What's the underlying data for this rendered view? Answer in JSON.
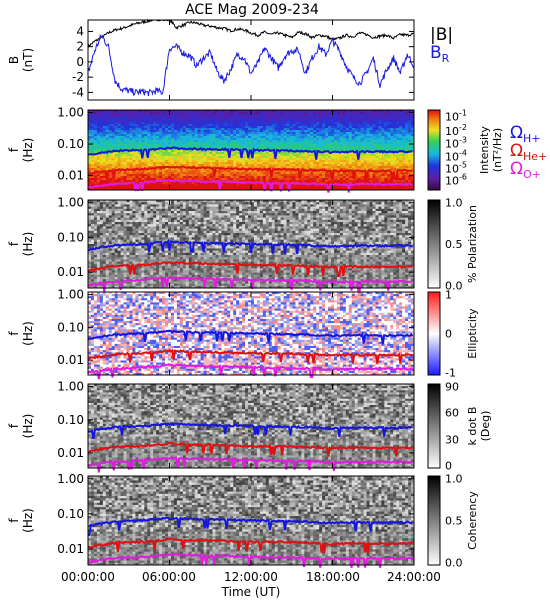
{
  "title": "ACE Mag 2009-234",
  "xaxis": {
    "label": "Time (UT)",
    "ticks": [
      "00:00:00",
      "06:00:00",
      "12:00:00",
      "18:00:00",
      "24:00:00"
    ]
  },
  "colors": {
    "B": "#000000",
    "BR": "#1a1ae6",
    "H": "#1515e0",
    "He": "#e01010",
    "O": "#e01ce0"
  },
  "panels": [
    {
      "id": "field",
      "ylabel1": "B",
      "ylabel2": "(nT)",
      "yticks": [
        "4",
        "2",
        "0",
        "-2",
        "-4"
      ],
      "legend": {
        "b": "|B|",
        "br": "B",
        "br_sub": "R"
      }
    },
    {
      "id": "intensity",
      "ylabel1": "f",
      "ylabel2": "(Hz)",
      "yticks": [
        "1.00",
        "0.10",
        "0.01"
      ],
      "cb_title1": "Intensity",
      "cb_title2": "(nT²/Hz)",
      "cb_ticks": [
        "10",
        "10",
        "10",
        "10",
        "10",
        "10"
      ],
      "cb_exps": [
        "-1",
        "-2",
        "-3",
        "-4",
        "-5",
        "-6"
      ],
      "legend": [
        {
          "sym": "Ω",
          "sub": "H+"
        },
        {
          "sym": "Ω",
          "sub": "He+"
        },
        {
          "sym": "Ω",
          "sub": "O+"
        }
      ]
    },
    {
      "id": "polarization",
      "ylabel1": "f",
      "ylabel2": "(Hz)",
      "yticks": [
        "1.00",
        "0.10",
        "0.01"
      ],
      "cb_title1": "% Polarization",
      "cb_ticks": [
        "1.0",
        "0.5",
        "0.0"
      ]
    },
    {
      "id": "ellipticity",
      "ylabel1": "f",
      "ylabel2": "(Hz)",
      "yticks": [
        "1.00",
        "0.10",
        "0.01"
      ],
      "cb_title1": "Ellipticity",
      "cb_ticks": [
        "1",
        "0",
        "-1"
      ]
    },
    {
      "id": "kdotb",
      "ylabel1": "f",
      "ylabel2": "(Hz)",
      "yticks": [
        "1.00",
        "0.10",
        "0.01"
      ],
      "cb_title1": "k dot B",
      "cb_title2": "(Deg)",
      "cb_ticks": [
        "90",
        "60",
        "30",
        "0"
      ]
    },
    {
      "id": "coherency",
      "ylabel1": "f",
      "ylabel2": "(Hz)",
      "yticks": [
        "1.00",
        "0.10",
        "0.01"
      ],
      "cb_title1": "Coherency",
      "cb_ticks": [
        "1.0",
        "0.5",
        "0.0"
      ]
    }
  ],
  "chart_data": {
    "type": "heatmap",
    "title": "ACE Mag 2009-234",
    "xlabel": "Time (UT)",
    "xlim_hours": [
      0,
      24
    ],
    "field_panel": {
      "type": "line",
      "ylabel": "B (nT)",
      "ylim": [
        -5,
        5.5
      ],
      "series": [
        {
          "name": "|B|",
          "x_hours": [
            0,
            0.5,
            1,
            1.5,
            2,
            2.5,
            3,
            3.5,
            4,
            4.5,
            5,
            5.5,
            6,
            6.5,
            7,
            7.5,
            8,
            8.5,
            9,
            9.5,
            10,
            10.5,
            11,
            11.5,
            12,
            12.5,
            13,
            13.5,
            14,
            14.5,
            15,
            15.5,
            16,
            16.5,
            17,
            17.5,
            18,
            18.5,
            19,
            19.5,
            20,
            20.5,
            21,
            21.5,
            22,
            22.5,
            23,
            23.5,
            24
          ],
          "values": [
            2.0,
            2.7,
            3.2,
            3.8,
            4.2,
            4.4,
            4.7,
            5.0,
            5.2,
            5.4,
            5.6,
            5.5,
            5.6,
            4.5,
            4.8,
            5.2,
            5.1,
            4.8,
            4.7,
            4.5,
            4.4,
            4.1,
            4.3,
            4.2,
            3.8,
            3.5,
            3.9,
            3.6,
            3.8,
            3.5,
            3.2,
            3.9,
            3.7,
            3.2,
            3.5,
            3.4,
            2.9,
            3.1,
            3.5,
            3.3,
            3.8,
            3.6,
            3.2,
            3.4,
            3.5,
            3.1,
            3.6,
            3.5,
            3.7
          ]
        },
        {
          "name": "B_R",
          "x_hours": [
            0,
            0.5,
            1,
            1.5,
            2,
            2.5,
            3,
            3.5,
            4,
            4.5,
            5,
            5.5,
            6,
            6.5,
            7,
            7.5,
            8,
            8.5,
            9,
            9.5,
            10,
            10.5,
            11,
            11.5,
            12,
            12.5,
            13,
            13.5,
            14,
            14.5,
            15,
            15.5,
            16,
            16.5,
            17,
            17.5,
            18,
            18.5,
            19,
            19.5,
            20,
            20.5,
            21,
            21.5,
            22,
            22.5,
            23,
            23.5,
            24
          ],
          "values": [
            -1.5,
            1.5,
            3.5,
            2.0,
            -2.5,
            -3.6,
            -3.8,
            -4.0,
            -3.9,
            -4.1,
            -3.8,
            -4.0,
            1.8,
            2.0,
            1.2,
            0.8,
            -0.5,
            0.5,
            1.2,
            -1.2,
            -2.5,
            -1.0,
            1.0,
            0.5,
            -1.5,
            -0.2,
            1.8,
            0.5,
            -0.8,
            0.8,
            1.5,
            1.5,
            -1.5,
            0.5,
            2.0,
            1.0,
            2.8,
            1.5,
            -0.5,
            -2.0,
            -2.8,
            -1.5,
            0.5,
            -3.0,
            -1.0,
            0.5,
            -1.5,
            1.0,
            -0.5
          ]
        }
      ]
    },
    "frequency_axis": {
      "ylabel": "f (Hz)",
      "scale": "log",
      "ylim": [
        0.003,
        1.2
      ]
    },
    "gyrofrequency_lines": [
      {
        "name": "Ω H+",
        "x_hours": [
          0,
          2,
          4,
          6,
          8,
          10,
          12,
          14,
          16,
          18,
          20,
          22,
          24
        ],
        "values": [
          0.045,
          0.06,
          0.065,
          0.075,
          0.07,
          0.068,
          0.065,
          0.062,
          0.06,
          0.055,
          0.058,
          0.057,
          0.058
        ]
      },
      {
        "name": "Ω He+",
        "x_hours": [
          0,
          2,
          4,
          6,
          8,
          10,
          12,
          14,
          16,
          18,
          20,
          22,
          24
        ],
        "values": [
          0.011,
          0.015,
          0.016,
          0.019,
          0.018,
          0.017,
          0.016,
          0.016,
          0.015,
          0.014,
          0.0145,
          0.014,
          0.0145
        ]
      },
      {
        "name": "Ω O+",
        "x_hours": [
          0,
          2,
          4,
          6,
          8,
          10,
          12,
          14,
          16,
          18,
          20,
          22,
          24
        ],
        "values": [
          0.0042,
          0.0055,
          0.006,
          0.007,
          0.0066,
          0.0064,
          0.006,
          0.0058,
          0.0056,
          0.0052,
          0.0054,
          0.0053,
          0.0054
        ]
      }
    ],
    "spectrogram_panels": [
      {
        "quantity": "Intensity",
        "units": "nT²/Hz",
        "scale": "log",
        "range": [
          1e-06,
          0.1
        ]
      },
      {
        "quantity": "% Polarization",
        "range": [
          0,
          1
        ]
      },
      {
        "quantity": "Ellipticity",
        "range": [
          -1,
          1
        ]
      },
      {
        "quantity": "k dot B",
        "units": "Deg",
        "range": [
          0,
          90
        ]
      },
      {
        "quantity": "Coherency",
        "range": [
          0,
          1
        ]
      }
    ]
  }
}
